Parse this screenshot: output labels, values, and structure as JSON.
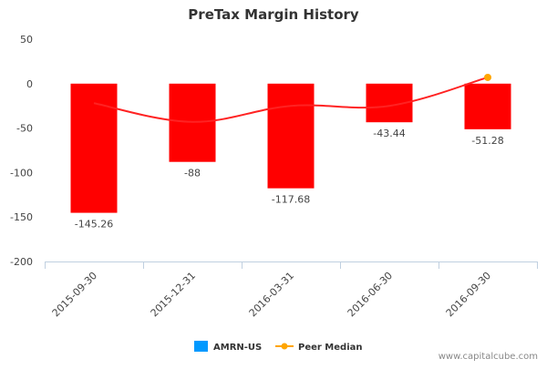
{
  "chart_data": {
    "type": "bar",
    "title": "PreTax Margin History",
    "categories": [
      "2015-09-30",
      "2015-12-31",
      "2016-03-31",
      "2016-06-30",
      "2016-09-30"
    ],
    "series": [
      {
        "name": "AMRN-US",
        "type": "bar",
        "values": [
          -145.26,
          -88,
          -117.68,
          -43.44,
          -51.28
        ],
        "labels": [
          "-145.26",
          "-88",
          "-117.68",
          "-43.44",
          "-51.28"
        ],
        "color": "#ff0000",
        "legend_color": "#0099ff"
      },
      {
        "name": "Peer Median",
        "type": "line",
        "values": [
          -22,
          -43,
          -25,
          -25,
          7
        ],
        "color": "#ff2222",
        "marker_color": "#ffa500"
      }
    ],
    "xlabel": "",
    "ylabel": "",
    "ylim": [
      -200,
      50
    ],
    "yticks": [
      50,
      0,
      -50,
      -100,
      -150,
      -200
    ],
    "ytick_labels": [
      "50",
      "0",
      "-50",
      "-100",
      "-150",
      "-200"
    ],
    "grid": false,
    "legend": "bottom-center"
  },
  "watermark": "www.capitalcube.com"
}
